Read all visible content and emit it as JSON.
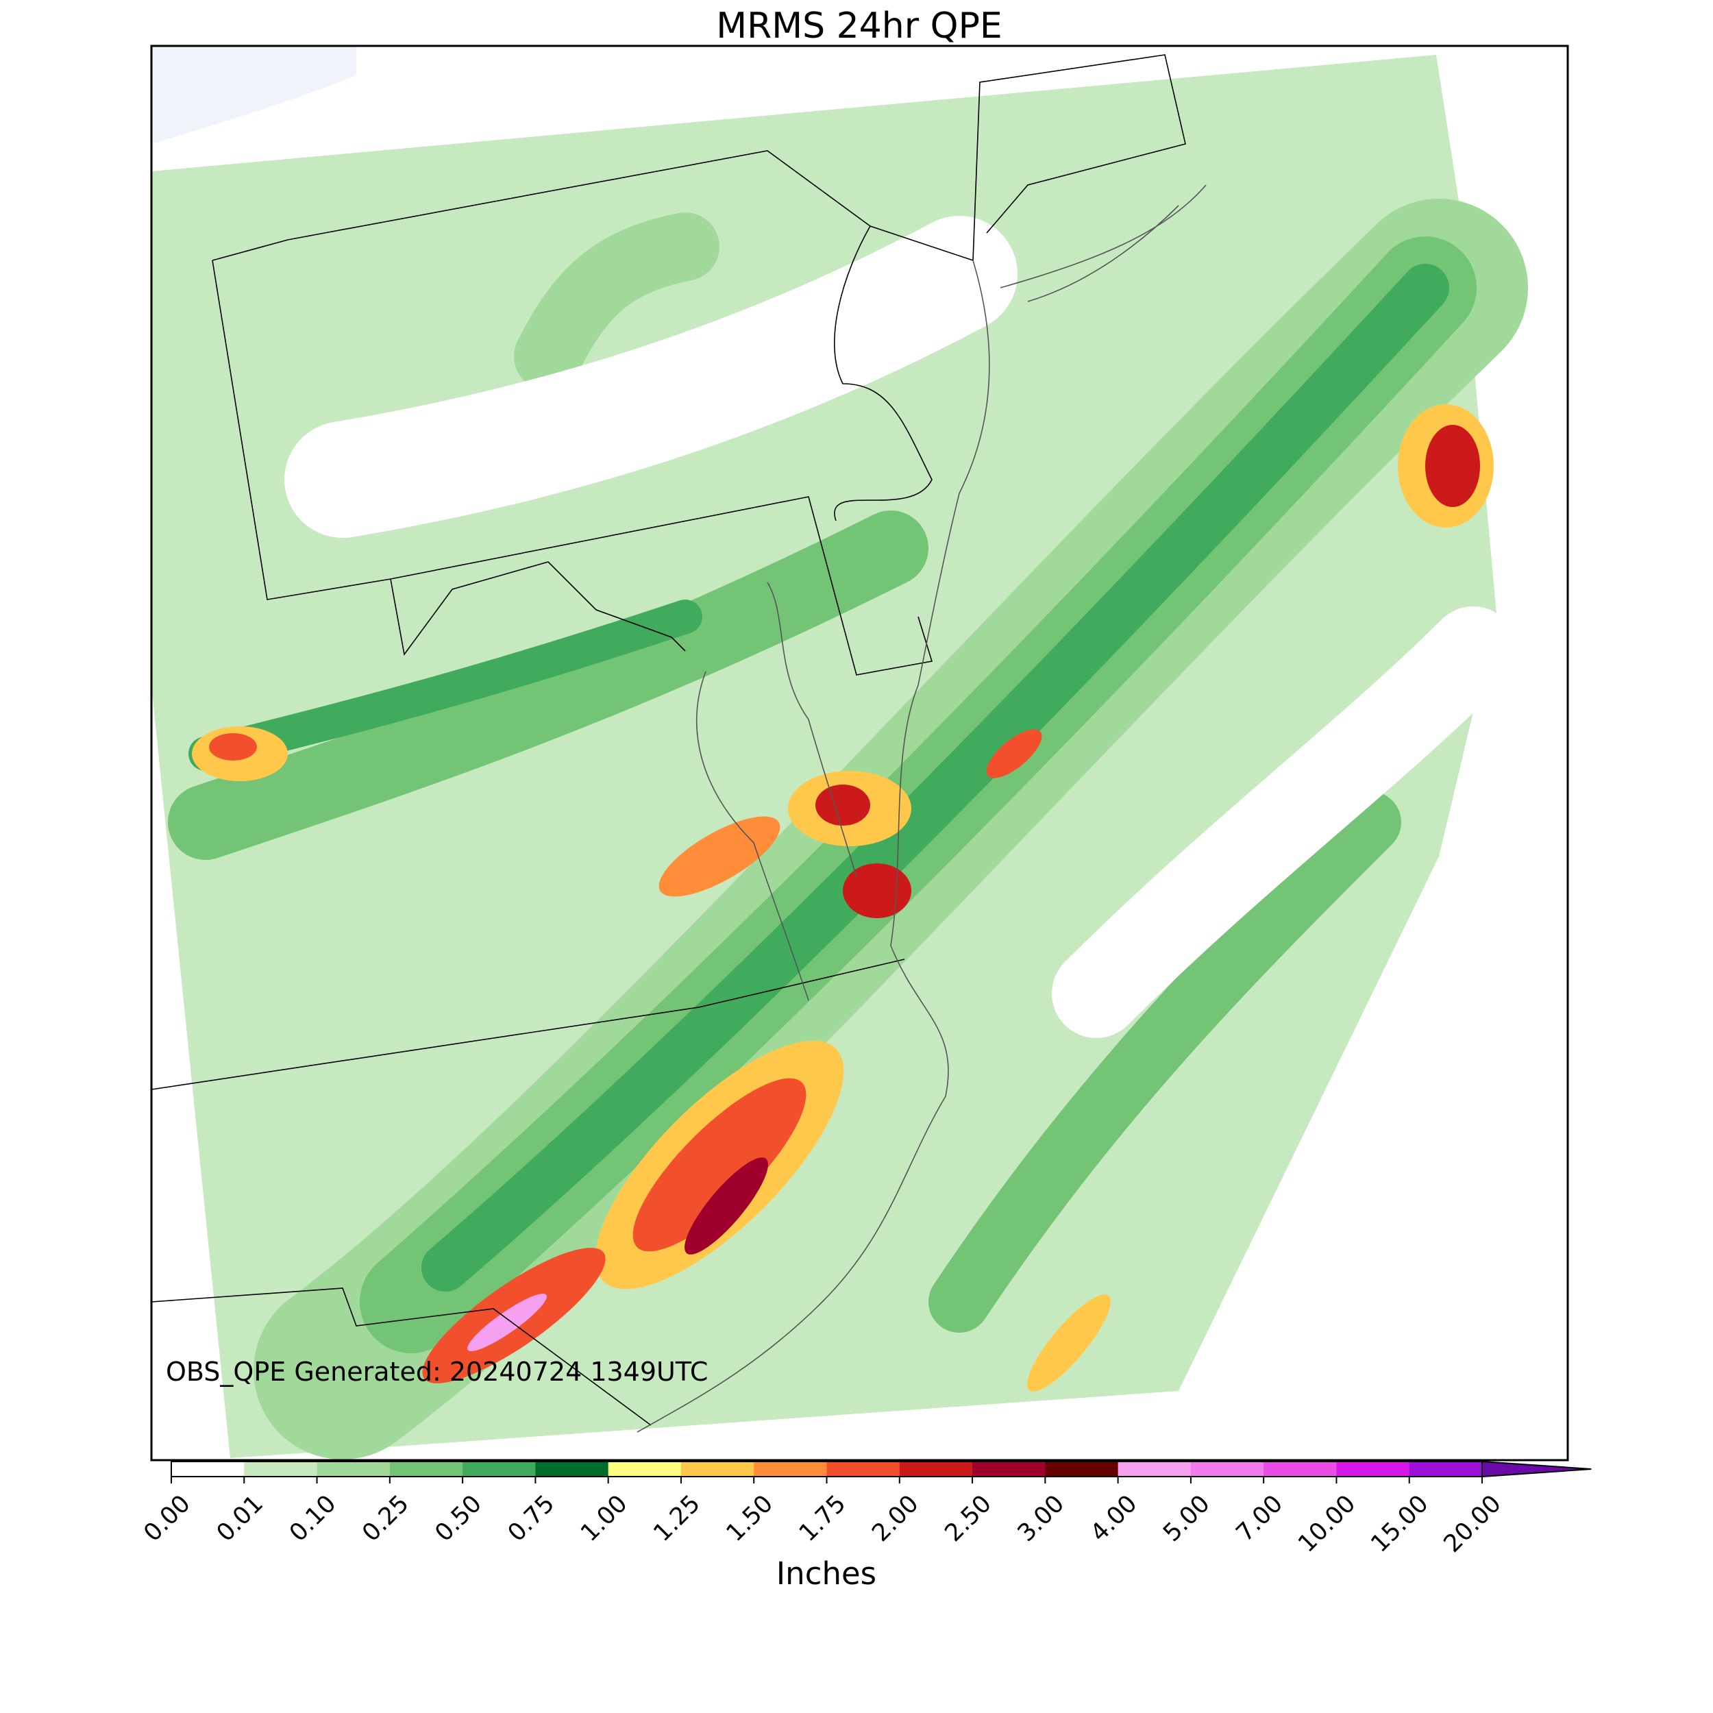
{
  "chart_data": {
    "type": "map",
    "title": "MRMS 24hr QPE",
    "annotation": "OBS_QPE Generated: 20240724 1349UTC",
    "colorbar": {
      "label": "Inches",
      "extend": "max",
      "ticks": [
        {
          "value": 0,
          "label": "0.00"
        },
        {
          "value": 0.01,
          "label": "0.01"
        },
        {
          "value": 0.1,
          "label": "0.10"
        },
        {
          "value": 0.25,
          "label": "0.25"
        },
        {
          "value": 0.5,
          "label": "0.50"
        },
        {
          "value": 0.75,
          "label": "0.75"
        },
        {
          "value": 1,
          "label": "1.00"
        },
        {
          "value": 1.25,
          "label": "1.25"
        },
        {
          "value": 1.5,
          "label": "1.50"
        },
        {
          "value": 1.75,
          "label": "1.75"
        },
        {
          "value": 2,
          "label": "2.00"
        },
        {
          "value": 2.5,
          "label": "2.50"
        },
        {
          "value": 3,
          "label": "3.00"
        },
        {
          "value": 4,
          "label": "4.00"
        },
        {
          "value": 5,
          "label": "5.00"
        },
        {
          "value": 7,
          "label": "7.00"
        },
        {
          "value": 10,
          "label": "10.00"
        },
        {
          "value": 15,
          "label": "15.00"
        },
        {
          "value": 20,
          "label": "20.00"
        }
      ],
      "colors": [
        "#ffffff",
        "#c7e9c0",
        "#a1d99b",
        "#74c476",
        "#41ab5d",
        "#006d2c",
        "#ffff80",
        "#ffc84b",
        "#ff8c38",
        "#f2502c",
        "#cc1a1a",
        "#a0002c",
        "#660000",
        "#f5a0f0",
        "#f07bea",
        "#e84de6",
        "#d818e8",
        "#9b10d8"
      ],
      "over_color": "#6a0aa8"
    }
  }
}
